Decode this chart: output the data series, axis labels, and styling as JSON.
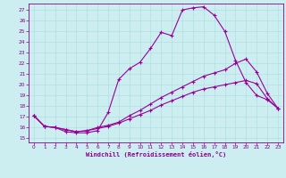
{
  "xlabel": "Windchill (Refroidissement éolien,°C)",
  "bg_color": "#cceef0",
  "line_color": "#990099",
  "grid_color": "#aadddd",
  "text_color": "#880088",
  "xlim_min": -0.5,
  "xlim_max": 23.5,
  "ylim_min": 14.6,
  "ylim_max": 27.6,
  "yticks": [
    15,
    16,
    17,
    18,
    19,
    20,
    21,
    22,
    23,
    24,
    25,
    26,
    27
  ],
  "xticks": [
    0,
    1,
    2,
    3,
    4,
    5,
    6,
    7,
    8,
    9,
    10,
    11,
    12,
    13,
    14,
    15,
    16,
    17,
    18,
    19,
    20,
    21,
    22,
    23
  ],
  "line1_x": [
    0,
    1,
    2,
    3,
    4,
    5,
    6,
    7,
    8,
    9,
    10,
    11,
    12,
    13,
    14,
    15,
    16,
    17,
    18,
    19,
    20,
    21,
    22,
    23
  ],
  "line1_y": [
    17.1,
    16.1,
    16.0,
    15.6,
    15.5,
    15.5,
    15.7,
    17.4,
    20.5,
    21.5,
    22.1,
    23.4,
    24.9,
    24.6,
    27.0,
    27.2,
    27.3,
    26.5,
    25.0,
    22.3,
    20.2,
    19.0,
    18.6,
    17.8
  ],
  "line2_x": [
    0,
    1,
    2,
    3,
    4,
    5,
    6,
    7,
    8,
    9,
    10,
    11,
    12,
    13,
    14,
    15,
    16,
    17,
    18,
    19,
    20,
    21,
    22,
    23
  ],
  "line2_y": [
    17.1,
    16.1,
    16.0,
    15.8,
    15.6,
    15.7,
    16.0,
    16.2,
    16.5,
    17.1,
    17.6,
    18.2,
    18.8,
    19.3,
    19.8,
    20.3,
    20.8,
    21.1,
    21.4,
    22.0,
    22.4,
    21.2,
    19.2,
    17.8
  ],
  "line3_x": [
    0,
    1,
    2,
    3,
    4,
    5,
    6,
    7,
    8,
    9,
    10,
    11,
    12,
    13,
    14,
    15,
    16,
    17,
    18,
    19,
    20,
    21,
    22,
    23
  ],
  "line3_y": [
    17.1,
    16.1,
    16.0,
    15.8,
    15.6,
    15.7,
    15.9,
    16.1,
    16.4,
    16.8,
    17.2,
    17.6,
    18.1,
    18.5,
    18.9,
    19.3,
    19.6,
    19.8,
    20.0,
    20.2,
    20.4,
    20.1,
    18.7,
    17.8
  ]
}
